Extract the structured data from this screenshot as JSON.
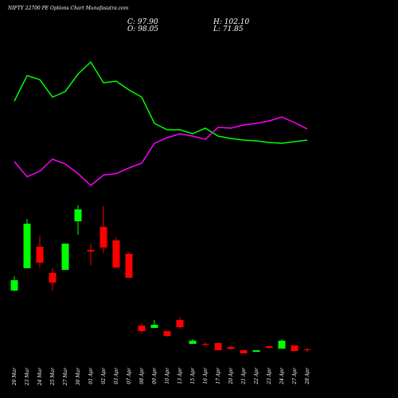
{
  "chart_data": {
    "type": "candlestick",
    "title": "NIFTY 22700  PE Options  Chart Munafasutra.com",
    "close_text": "C: 97.90",
    "high_text": "H: 102.10",
    "open_text": "O: 98.05",
    "low_text": "L: 71.85",
    "categories": [
      "20 Mar",
      "23 Mar",
      "24 Mar",
      "25 Mar",
      "27 Mar",
      "30 Mar",
      "01 Apr",
      "02 Apr",
      "03 Apr",
      "07 Apr",
      "08 Apr",
      "09 Apr",
      "10 Apr",
      "13 Apr",
      "15 Apr",
      "16 Apr",
      "17 Apr",
      "20 Apr",
      "21 Apr",
      "22 Apr",
      "23 Apr",
      "24 Apr",
      "27 Apr",
      "28 Apr"
    ],
    "open": [
      135,
      163,
      190,
      157,
      161,
      222,
      186,
      215,
      198,
      181,
      91,
      88,
      84,
      98,
      68,
      68,
      69,
      64,
      60,
      58,
      65,
      62,
      66,
      61
    ],
    "close": [
      148,
      219,
      170,
      145,
      194,
      237,
      184,
      189,
      164,
      151,
      84,
      92,
      78,
      89,
      72,
      67,
      60,
      62,
      56,
      60,
      63,
      72,
      59,
      60
    ],
    "high": [
      153,
      225,
      204,
      163,
      194,
      242,
      194,
      241,
      202,
      183,
      94,
      98,
      84,
      101,
      74,
      70,
      70,
      66,
      61,
      60,
      66,
      74,
      66,
      63
    ],
    "low": [
      134,
      163,
      164,
      135,
      161,
      205,
      167,
      182,
      163,
      151,
      81,
      88,
      77,
      88,
      68,
      65,
      60,
      60,
      56,
      58,
      62,
      62,
      59,
      58
    ],
    "up_color": "#00ff00",
    "down_color": "#ff0000",
    "series": [
      {
        "color": "#00ff00",
        "values": [
          373,
          405,
          400,
          378,
          385,
          407,
          422,
          396,
          398,
          387,
          378,
          345,
          337,
          337,
          332,
          339,
          329,
          326,
          324,
          323,
          321,
          320,
          322,
          324
        ]
      },
      {
        "color": "#ff00ff",
        "values": [
          297,
          278,
          285,
          300,
          294,
          282,
          267,
          280,
          282,
          289,
          295,
          320,
          327,
          332,
          329,
          325,
          340,
          339,
          343,
          345,
          348,
          353,
          346,
          338
        ]
      }
    ],
    "ylim": [
      50,
      450
    ]
  }
}
